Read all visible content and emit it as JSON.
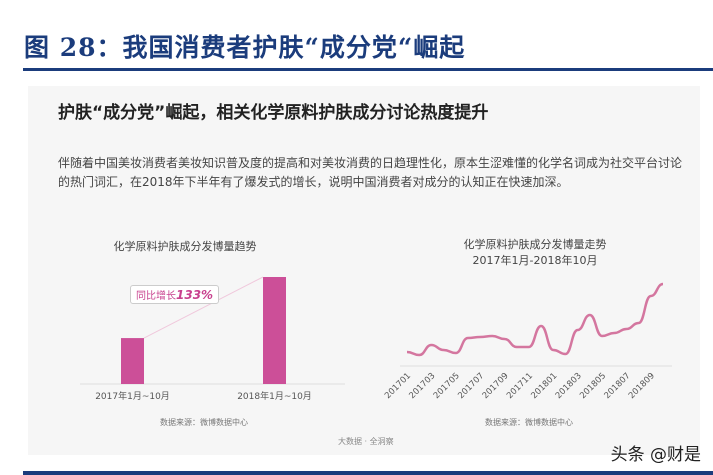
{
  "figure_title": "图 28：我国消费者护肤“成分党“崛起",
  "panel": {
    "title": "护肤“成分党”崛起，相关化学原料护肤成分讨论热度提升",
    "description": "伴随着中国美妆消费者美妆知识普及度的提高和对美妆消费的日趋理性化，原本生涩难懂的化学名词成为社交平台讨论的热门词汇，在2018年下半年有了爆发式的增长，说明中国消费者对成分的认知正在快速加深。",
    "tagline": "大数据 · 全洞察"
  },
  "watermark": "头条 @财是",
  "colors": {
    "accent": "#cc4f98",
    "line": "#d4769f",
    "title": "#1b3c7c"
  },
  "chart_data": [
    {
      "type": "bar",
      "title": "化学原料护肤成分发博量趋势",
      "categories": [
        "2017年1月~10月",
        "2018年1月~10月"
      ],
      "values": [
        1,
        2.33
      ],
      "annotation_prefix": "同比增长",
      "annotation_value": "133%",
      "source": "数据来源：微博数据中心",
      "grid": false
    },
    {
      "type": "line",
      "title": "化学原料护肤成分发博量走势",
      "subtitle": "2017年1月-2018年10月",
      "x": [
        "201701",
        "201702",
        "201703",
        "201704",
        "201705",
        "201706",
        "201707",
        "201708",
        "201709",
        "201710",
        "201711",
        "201712",
        "201801",
        "201802",
        "201803",
        "201804",
        "201805",
        "201806",
        "201807",
        "201808",
        "201809",
        "201810"
      ],
      "tick_labels": [
        "201701",
        "201703",
        "201705",
        "201707",
        "201709",
        "201711",
        "201801",
        "201803",
        "201805",
        "201807",
        "201809"
      ],
      "values": [
        14,
        11,
        21,
        16,
        13,
        28,
        29,
        30,
        27,
        19,
        19,
        40,
        16,
        12,
        36,
        51,
        30,
        33,
        37,
        43,
        70,
        82
      ],
      "source": "数据来源：微博数据中心",
      "grid": false
    }
  ]
}
